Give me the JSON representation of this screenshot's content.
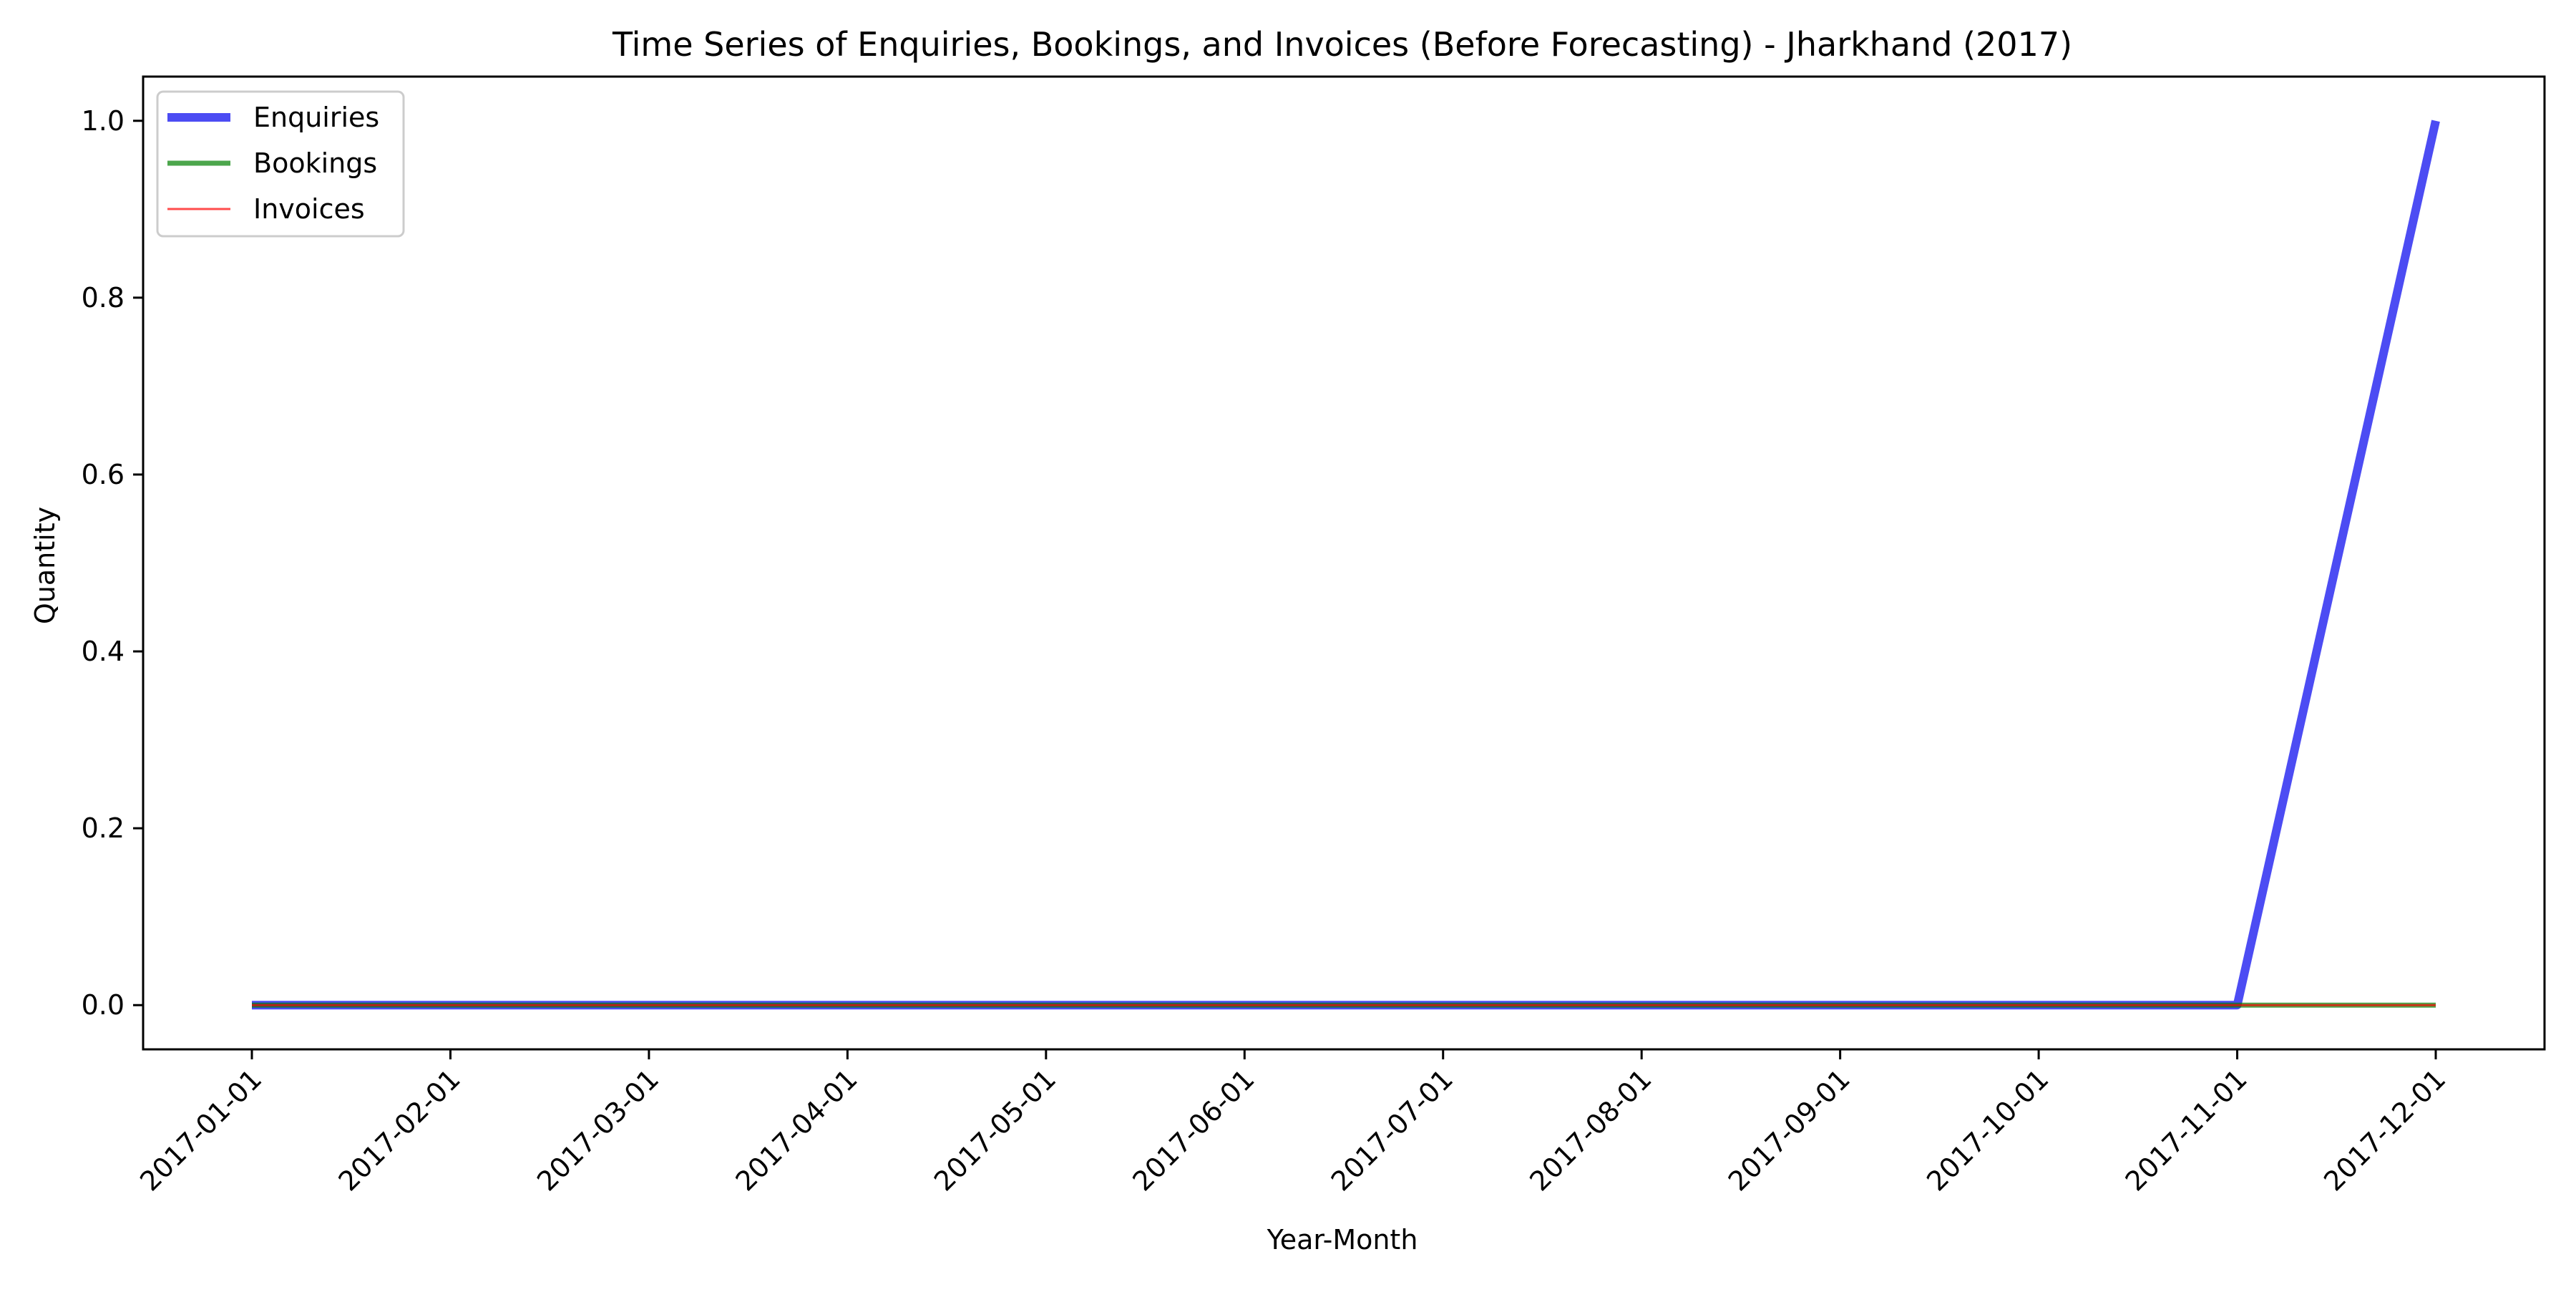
{
  "chart_data": {
    "type": "line",
    "title": "Time Series of Enquiries, Bookings, and Invoices (Before Forecasting) - Jharkhand (2017)",
    "xlabel": "Year-Month",
    "ylabel": "Quantity",
    "x": [
      "2017-01-01",
      "2017-02-01",
      "2017-03-01",
      "2017-04-01",
      "2017-05-01",
      "2017-06-01",
      "2017-07-01",
      "2017-08-01",
      "2017-09-01",
      "2017-10-01",
      "2017-11-01",
      "2017-12-01"
    ],
    "ylim": [
      -0.05,
      1.05
    ],
    "yticks": [
      0.0,
      0.2,
      0.4,
      0.6,
      0.8,
      1.0
    ],
    "ytick_labels": [
      "0.0",
      "0.2",
      "0.4",
      "0.6",
      "0.8",
      "1.0"
    ],
    "grid": false,
    "legend_position": "upper left",
    "series": [
      {
        "name": "Enquiries",
        "color": "#0000ee",
        "values": [
          0,
          0,
          0,
          0,
          0,
          0,
          0,
          0,
          0,
          0,
          0,
          1
        ]
      },
      {
        "name": "Bookings",
        "color": "#008000",
        "values": [
          0,
          0,
          0,
          0,
          0,
          0,
          0,
          0,
          0,
          0,
          0,
          0
        ]
      },
      {
        "name": "Invoices",
        "color": "#ff0000",
        "values": [
          0,
          0,
          0,
          0,
          0,
          0,
          0,
          0,
          0,
          0,
          0,
          0
        ]
      }
    ]
  }
}
